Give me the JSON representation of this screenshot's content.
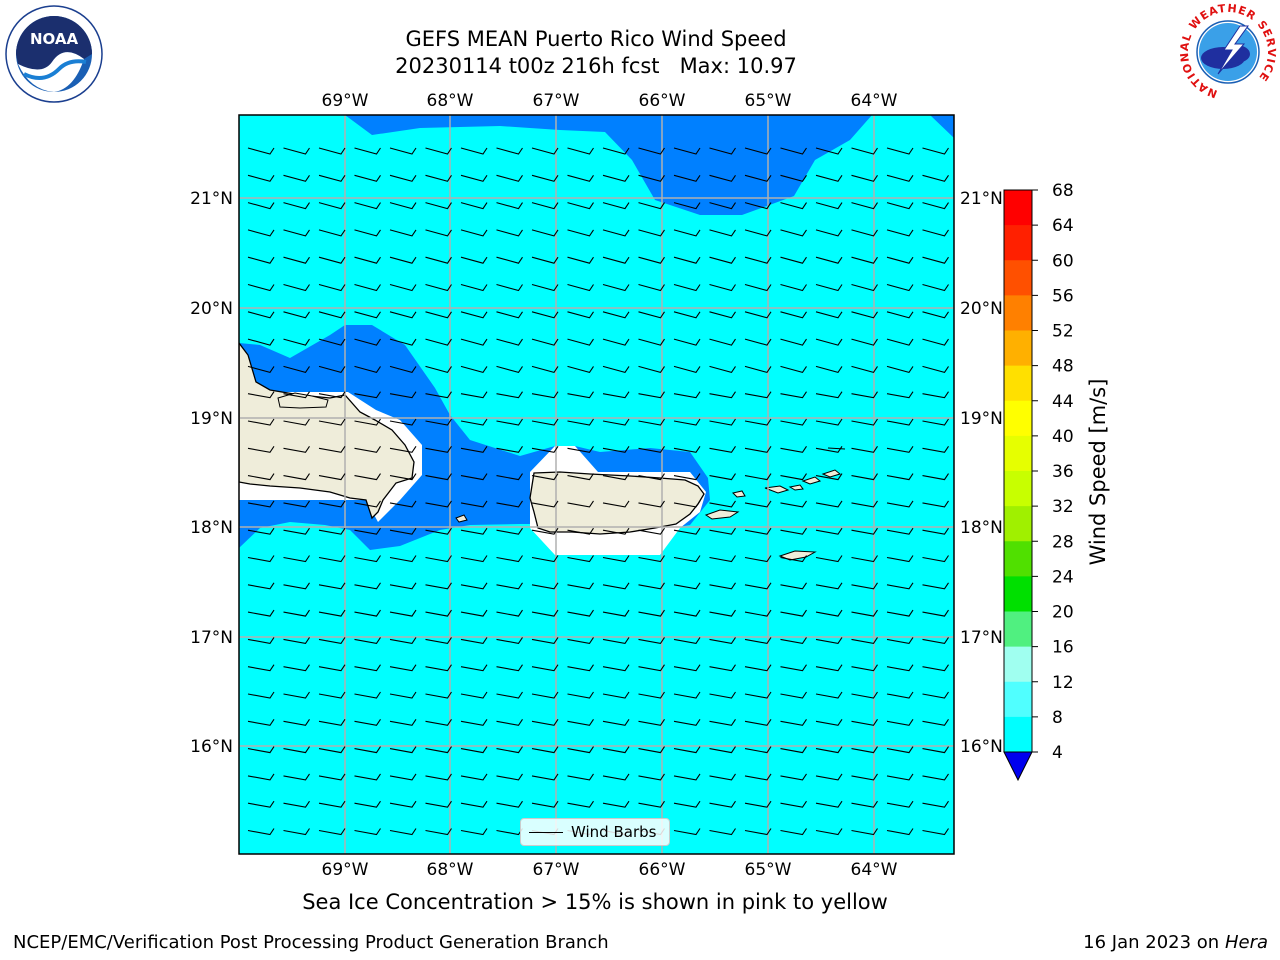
{
  "header": {
    "title_line1": "GEFS MEAN Puerto Rico Wind Speed",
    "title_line2": "20230114 t00z 216h fcst   Max: 10.97"
  },
  "logos": {
    "noaa_text": "NOAA",
    "nws_ring_text": "NATIONAL WEATHER SERVICE"
  },
  "map": {
    "lon_labels": [
      "69°W",
      "68°W",
      "67°W",
      "66°W",
      "65°W",
      "64°W"
    ],
    "lat_labels": [
      "21°N",
      "20°N",
      "19°N",
      "18°N",
      "17°N",
      "16°N"
    ],
    "legend_label": "Wind Barbs",
    "colors": {
      "sea_light": "#00ffff",
      "sea_dark": "#0080ff",
      "land": "#efedda",
      "grid": "#b0b0b0"
    }
  },
  "colorbar": {
    "label": "Wind Speed [m/s]",
    "ticks": [
      "68",
      "64",
      "60",
      "56",
      "52",
      "48",
      "44",
      "40",
      "36",
      "32",
      "28",
      "24",
      "20",
      "16",
      "12",
      "8",
      "4"
    ],
    "colors_top_to_bottom": [
      "#ff0000",
      "#ff2000",
      "#ff5000",
      "#ff8000",
      "#ffb000",
      "#ffe000",
      "#ffff00",
      "#e6ff00",
      "#c8ff00",
      "#a0f000",
      "#50e000",
      "#00e000",
      "#50f080",
      "#a0fff0",
      "#50ffff",
      "#00ffff",
      "#0080ff"
    ],
    "extend_color": "#0000ee"
  },
  "caption": "Sea Ice Concentration > 15% is shown in pink to yellow",
  "footer": {
    "left": "NCEP/EMC/Verification Post Processing Product Generation Branch",
    "right_prefix": "16 Jan 2023 on ",
    "right_host": "Hera"
  }
}
